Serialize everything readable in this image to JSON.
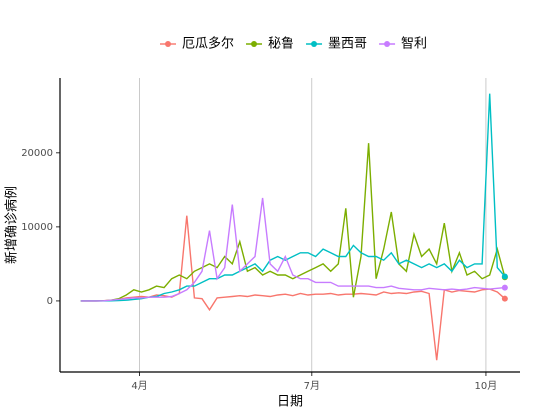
{
  "chart_data": {
    "type": "line",
    "x_label": "日期",
    "y_label": "新增确诊病例",
    "x": [
      60,
      64,
      68,
      72,
      76,
      80,
      84,
      88,
      92,
      96,
      100,
      104,
      108,
      112,
      116,
      120,
      124,
      128,
      132,
      136,
      140,
      144,
      148,
      152,
      156,
      160,
      164,
      168,
      172,
      176,
      180,
      184,
      188,
      192,
      196,
      200,
      204,
      208,
      212,
      216,
      220,
      224,
      228,
      232,
      236,
      240,
      244,
      248,
      252,
      256,
      260,
      264,
      268,
      272,
      276,
      280,
      284
    ],
    "xlim": [
      49,
      292
    ],
    "xticks": [
      {
        "value": 91,
        "label": "4月"
      },
      {
        "value": 182,
        "label": "7月"
      },
      {
        "value": 274,
        "label": "10月"
      }
    ],
    "ylim": [
      -9600,
      30100
    ],
    "yticks": [
      0,
      10000,
      20000
    ],
    "grid": "x",
    "legend": "top",
    "series": [
      {
        "name": "厄瓜多尔",
        "color": "#F8766D",
        "values": [
          0,
          0,
          5,
          30,
          100,
          200,
          400,
          500,
          600,
          500,
          800,
          700,
          500,
          1000,
          11500,
          400,
          300,
          -1200,
          400,
          500,
          600,
          700,
          600,
          800,
          700,
          600,
          800,
          900,
          700,
          1000,
          800,
          900,
          900,
          1000,
          800,
          900,
          900,
          1000,
          900,
          800,
          1200,
          1000,
          1100,
          1000,
          1200,
          1300,
          1000,
          -8000,
          1500,
          1200,
          1400,
          1300,
          1200,
          1500,
          1600,
          1200,
          300
        ]
      },
      {
        "name": "秘鲁",
        "color": "#7CAE00",
        "values": [
          0,
          0,
          0,
          10,
          100,
          300,
          800,
          1500,
          1200,
          1500,
          2000,
          1800,
          3000,
          3500,
          3000,
          4000,
          4500,
          5000,
          4500,
          6000,
          5000,
          8000,
          4000,
          4500,
          3500,
          4000,
          3500,
          3500,
          3000,
          3500,
          4000,
          4500,
          5000,
          4000,
          5000,
          12500,
          500,
          6000,
          21300,
          3000,
          7000,
          12000,
          5000,
          4000,
          9000,
          6000,
          7000,
          5000,
          10500,
          4000,
          6500,
          3500,
          4000,
          3000,
          3500,
          7000,
          3200
        ]
      },
      {
        "name": "墨西哥",
        "color": "#00BFC4",
        "values": [
          0,
          0,
          0,
          5,
          20,
          50,
          100,
          200,
          300,
          500,
          600,
          1000,
          1200,
          1500,
          2000,
          2000,
          2500,
          3000,
          3000,
          3500,
          3500,
          4000,
          4500,
          5000,
          4000,
          5500,
          6000,
          5500,
          6000,
          6500,
          6500,
          6000,
          7000,
          6500,
          6000,
          6000,
          7500,
          6500,
          6000,
          6000,
          5500,
          6500,
          5000,
          5500,
          5000,
          4500,
          5000,
          4500,
          5000,
          4000,
          5500,
          4500,
          5000,
          5000,
          28000,
          4500,
          3300
        ]
      },
      {
        "name": "智利",
        "color": "#C77CFF",
        "values": [
          0,
          0,
          0,
          20,
          100,
          200,
          300,
          400,
          400,
          500,
          500,
          500,
          600,
          1000,
          1500,
          2500,
          4000,
          9500,
          3000,
          4500,
          13000,
          4000,
          5000,
          6000,
          13900,
          5000,
          4000,
          6000,
          3500,
          3000,
          3000,
          2500,
          2500,
          2500,
          2000,
          2000,
          2000,
          2000,
          2000,
          1800,
          1800,
          2000,
          1700,
          1600,
          1500,
          1500,
          1700,
          1600,
          1500,
          1600,
          1500,
          1600,
          1800,
          1700,
          1600,
          1700,
          1800
        ]
      }
    ]
  }
}
